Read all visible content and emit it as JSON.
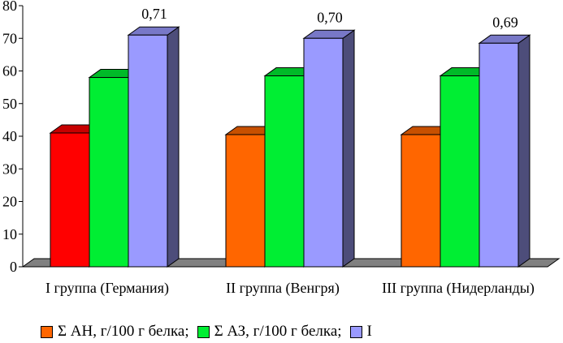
{
  "chart_data": {
    "type": "bar",
    "subtype": "3d-clustered",
    "title": "",
    "xlabel": "",
    "ylabel": "",
    "ylim": [
      0,
      80
    ],
    "yticks": [
      0,
      10,
      20,
      30,
      40,
      50,
      60,
      70,
      80
    ],
    "grid": false,
    "categories": [
      "I группа (Германия)",
      "II группа (Венгря)",
      "III группа (Нидерланды)"
    ],
    "series": [
      {
        "name": "Σ АН, г/100 г белка;",
        "values": [
          41,
          40.5,
          40.5
        ],
        "colors": [
          "#ff0000",
          "#ff6600",
          "#ff6600"
        ]
      },
      {
        "name": "Σ АЗ, г/100 г белка;",
        "values": [
          58,
          58.5,
          58.5
        ],
        "color": "#00ee33"
      },
      {
        "name": "I",
        "values": [
          71,
          70,
          68.5
        ],
        "color": "#9a9aff",
        "data_labels": [
          "0,71",
          "0,70",
          "0,69"
        ]
      }
    ],
    "legend_position": "bottom"
  },
  "colors": {
    "axis": "#000000",
    "floor": "#808080",
    "wall_side": "#4d4d7a"
  }
}
